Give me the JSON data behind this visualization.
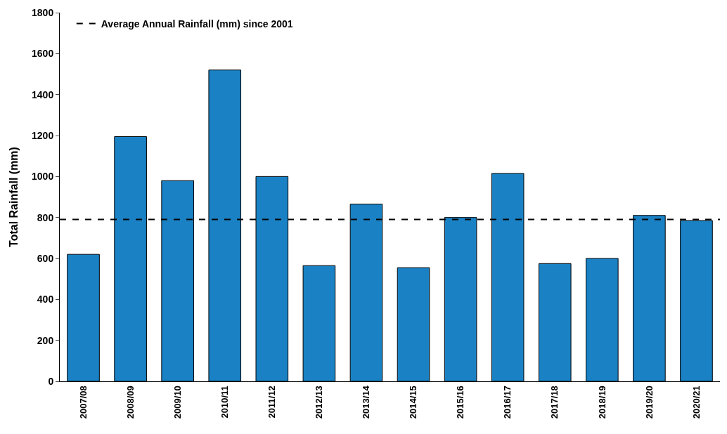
{
  "chart_data": {
    "type": "bar",
    "ylabel": "Total Rainfall (mm)",
    "categories": [
      "2007/08",
      "2008/09",
      "2009/10",
      "2010/11",
      "2011/12",
      "2012/13",
      "2013/14",
      "2014/15",
      "2015/16",
      "2016/17",
      "2017/18",
      "2018/19",
      "2019/20",
      "2020/21"
    ],
    "values": [
      620,
      1195,
      980,
      1520,
      1000,
      565,
      865,
      555,
      800,
      1015,
      575,
      600,
      810,
      785
    ],
    "color": "#1a82c4",
    "ylim": [
      0,
      1800
    ],
    "yticks": [
      0,
      200,
      400,
      600,
      800,
      1000,
      1200,
      1400,
      1600,
      1800
    ],
    "legend": "top left",
    "ref_lines": [
      {
        "axis": "y",
        "value": 790,
        "label": "Average Annual Rainfall (mm) since 2001",
        "color": "#000000",
        "line_style": "dashed"
      }
    ]
  }
}
